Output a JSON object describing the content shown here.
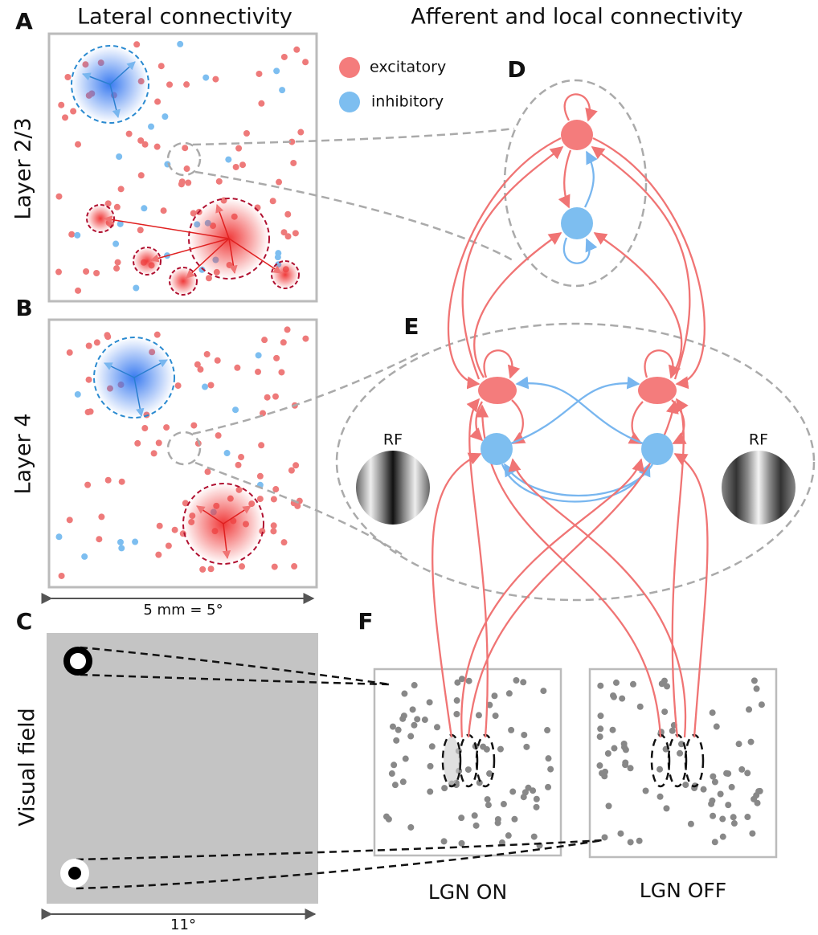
{
  "headings": {
    "lateral": "Lateral connectivity",
    "afferent": "Afferent and local connectivity"
  },
  "panel_letters": [
    "A",
    "B",
    "C",
    "D",
    "E",
    "F"
  ],
  "row_labels": [
    "Layer 2/3",
    "Layer 4",
    "Visual field"
  ],
  "legend": {
    "excitatory": "excitatory",
    "inhibitory": "inhibitory"
  },
  "scale_labels": {
    "cortex": "5 mm = 5°",
    "visual": "11°"
  },
  "rf_labels": [
    "RF",
    "RF"
  ],
  "lgn_labels": [
    "LGN ON",
    "LGN OFF"
  ]
}
